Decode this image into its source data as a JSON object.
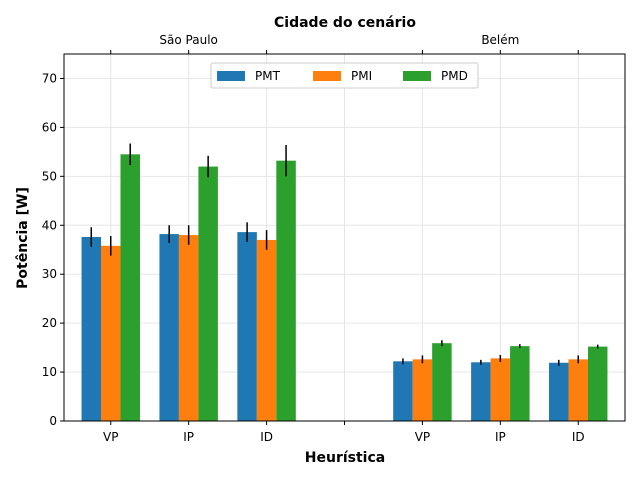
{
  "chart_data": {
    "type": "bar",
    "title": "Cidade do cenário",
    "xlabel": "Heurística",
    "ylabel": "Potência [W]",
    "ylim": [
      0,
      75
    ],
    "yticks": [
      0,
      10,
      20,
      30,
      40,
      50,
      60,
      70
    ],
    "grid": true,
    "legend_position": "top-center",
    "top_axis_labels": [
      "São Paulo",
      "Belém"
    ],
    "categories": [
      "VP",
      "IP",
      "ID",
      "",
      "VP",
      "IP",
      "ID"
    ],
    "series": [
      {
        "name": "PMT",
        "color": "#1f77b4",
        "values": [
          37.6,
          38.2,
          38.6,
          null,
          12.2,
          12.0,
          11.9
        ],
        "errors": [
          2.0,
          1.8,
          2.0,
          null,
          0.6,
          0.5,
          0.6
        ]
      },
      {
        "name": "PMI",
        "color": "#ff7f0e",
        "values": [
          35.8,
          38.0,
          37.0,
          null,
          12.6,
          12.8,
          12.6
        ],
        "errors": [
          2.0,
          2.0,
          2.0,
          null,
          0.8,
          0.7,
          0.8
        ]
      },
      {
        "name": "PMD",
        "color": "#2ca02c",
        "values": [
          54.5,
          52.0,
          53.2,
          null,
          15.9,
          15.3,
          15.2
        ],
        "errors": [
          2.2,
          2.2,
          3.2,
          null,
          0.6,
          0.4,
          0.4
        ]
      }
    ]
  }
}
